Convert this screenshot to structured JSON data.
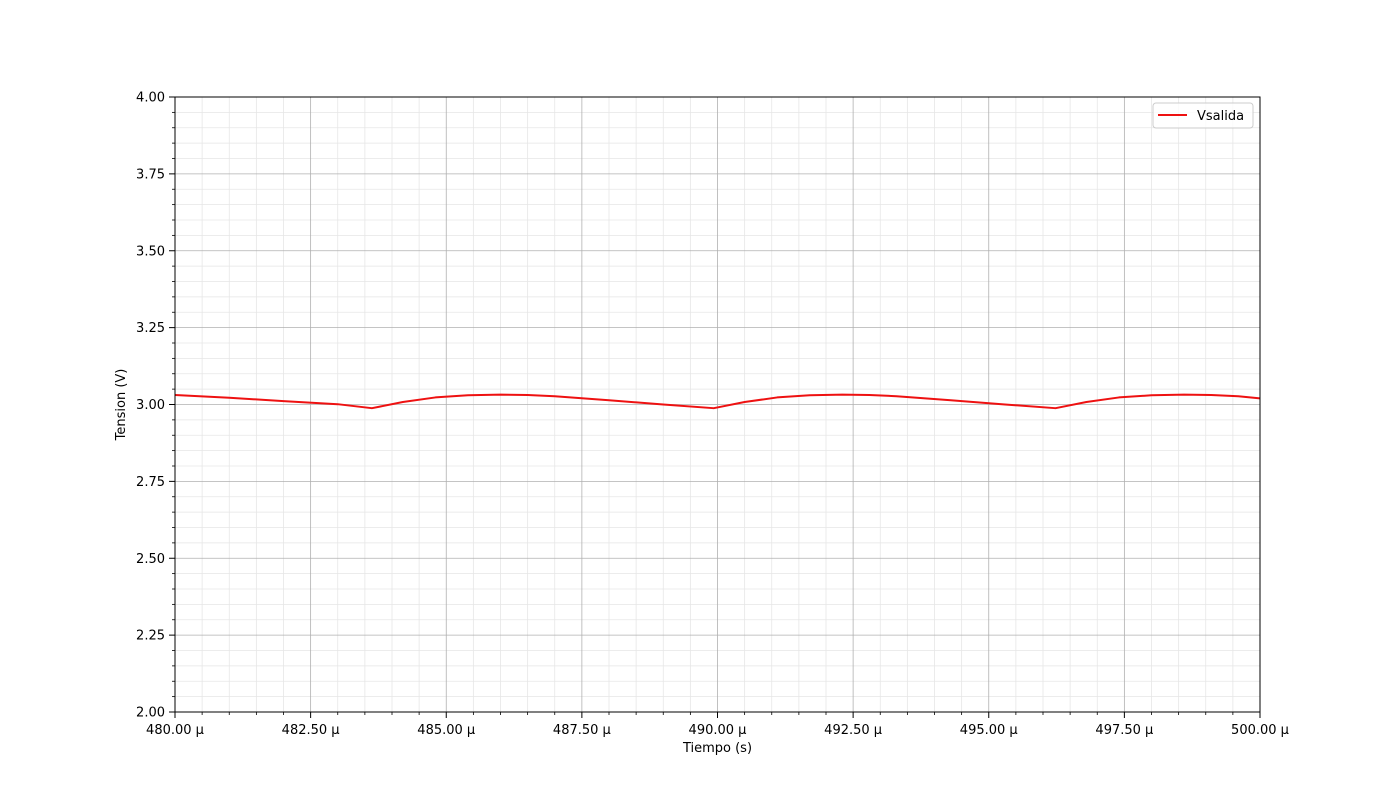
{
  "chart_data": {
    "type": "line",
    "title": "",
    "xlabel": "Tiempo (s)",
    "ylabel": "Tension (V)",
    "xlim": [
      480.0,
      500.0
    ],
    "ylim": [
      2.0,
      4.0
    ],
    "x_unit_suffix": "µ",
    "xticks": [
      480.0,
      482.5,
      485.0,
      487.5,
      490.0,
      492.5,
      495.0,
      497.5,
      500.0
    ],
    "xtick_labels": [
      "480.00 µ",
      "482.50 µ",
      "485.00 µ",
      "487.50 µ",
      "490.00 µ",
      "492.50 µ",
      "495.00 µ",
      "497.50 µ",
      "500.00 µ"
    ],
    "yticks": [
      2.0,
      2.25,
      2.5,
      2.75,
      3.0,
      3.25,
      3.5,
      3.75,
      4.0
    ],
    "ytick_labels": [
      "2.00",
      "2.25",
      "2.50",
      "2.75",
      "3.00",
      "3.25",
      "3.50",
      "3.75",
      "4.00"
    ],
    "grid": true,
    "minor_grid": true,
    "legend_position": "top-right",
    "series": [
      {
        "name": "Vsalida",
        "color": "#ee1111",
        "x": [
          480.0,
          481.0,
          482.0,
          483.0,
          483.63,
          484.2,
          484.8,
          485.4,
          486.0,
          486.5,
          487.0,
          488.0,
          489.0,
          489.93,
          490.5,
          491.1,
          491.7,
          492.3,
          492.8,
          493.3,
          494.3,
          495.3,
          496.23,
          496.8,
          497.4,
          498.0,
          498.6,
          499.1,
          499.6,
          500.0
        ],
        "values": [
          3.031,
          3.022,
          3.011,
          3.001,
          2.988,
          3.008,
          3.023,
          3.03,
          3.032,
          3.031,
          3.027,
          3.014,
          3.0,
          2.988,
          3.008,
          3.023,
          3.03,
          3.032,
          3.031,
          3.027,
          3.014,
          3.0,
          2.988,
          3.008,
          3.023,
          3.03,
          3.032,
          3.031,
          3.027,
          3.02
        ]
      }
    ]
  }
}
